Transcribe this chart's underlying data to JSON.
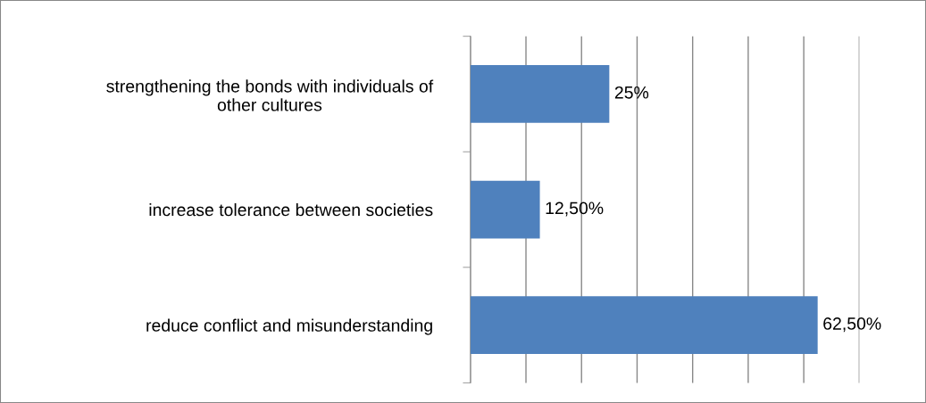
{
  "chart_data": {
    "type": "bar",
    "orientation": "horizontal",
    "categories": [
      "strengthening the bonds with individuals of\nother cultures",
      "increase tolerance between societies",
      "reduce conflict and misunderstanding"
    ],
    "values": [
      25,
      12.5,
      62.5
    ],
    "color": "#4f81bd",
    "value_labels": [
      "25%",
      "12,50%",
      "62,50%"
    ],
    "xlim": [
      0,
      70
    ],
    "xticks": [
      {
        "value": 0,
        "label": null
      },
      {
        "value": 10,
        "label": null
      },
      {
        "value": 20,
        "label": null
      },
      {
        "value": 30,
        "label": null
      },
      {
        "value": 40,
        "label": null
      },
      {
        "value": 50,
        "label": null
      },
      {
        "value": 60,
        "label": null
      },
      {
        "value": 70,
        "label": null
      }
    ],
    "tick_labels": "y",
    "grid": "x",
    "legend": false
  }
}
